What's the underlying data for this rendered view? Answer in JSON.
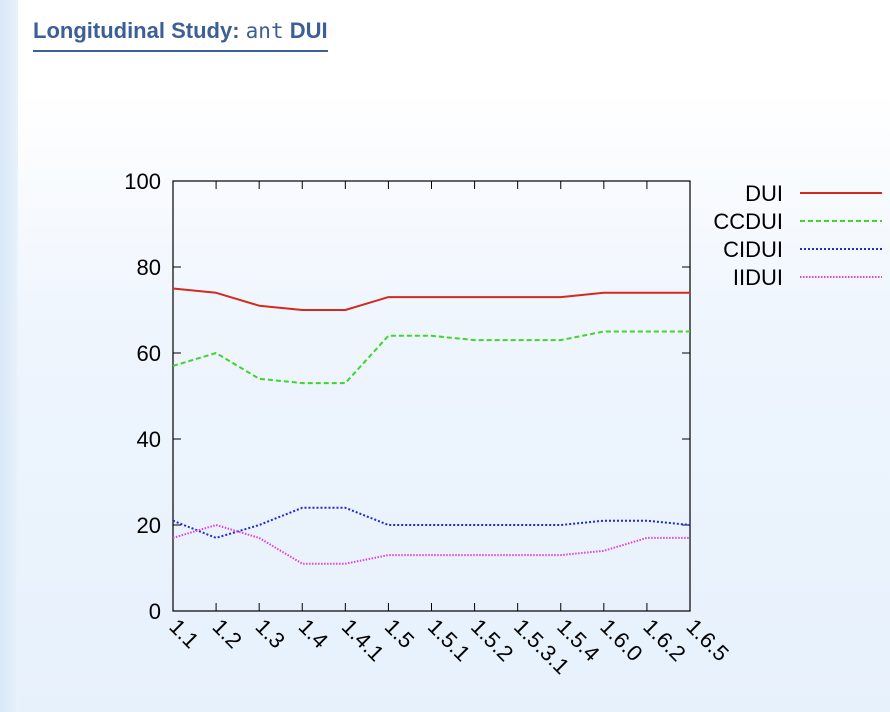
{
  "header": {
    "title_prefix": "Longitudinal Study:",
    "title_code": "ant",
    "title_suffix": "DUI"
  },
  "colors": {
    "DUI": "#d42a1e",
    "CCDUI": "#3fd62a",
    "CIDUI": "#1d2bd4",
    "IIDUI": "#e23fe0",
    "title": "#3b5f96"
  },
  "chart_data": {
    "type": "line",
    "categories": [
      "1.1",
      "1.2",
      "1.3",
      "1.4",
      "1.4.1",
      "1.5",
      "1.5.1",
      "1.5.2",
      "1.5.3.1",
      "1.5.4",
      "1.6.0",
      "1.6.2",
      "1.6.5"
    ],
    "ylim": [
      0,
      100
    ],
    "yticks": [
      0,
      20,
      40,
      60,
      80,
      100
    ],
    "legend_position": "outside-right-top",
    "series": [
      {
        "name": "DUI",
        "style": "solid",
        "values": [
          75,
          74,
          71,
          70,
          70,
          73,
          73,
          73,
          73,
          73,
          74,
          74,
          74
        ]
      },
      {
        "name": "CCDUI",
        "style": "dashed",
        "values": [
          57,
          60,
          54,
          53,
          53,
          64,
          64,
          63,
          63,
          63,
          65,
          65,
          65
        ]
      },
      {
        "name": "CIDUI",
        "style": "dotted",
        "values": [
          21,
          17,
          20,
          24,
          24,
          20,
          20,
          20,
          20,
          20,
          21,
          21,
          20
        ]
      },
      {
        "name": "IIDUI",
        "style": "dotted-fine",
        "values": [
          17,
          20,
          17,
          11,
          11,
          13,
          13,
          13,
          13,
          13,
          14,
          17,
          17
        ]
      }
    ]
  }
}
